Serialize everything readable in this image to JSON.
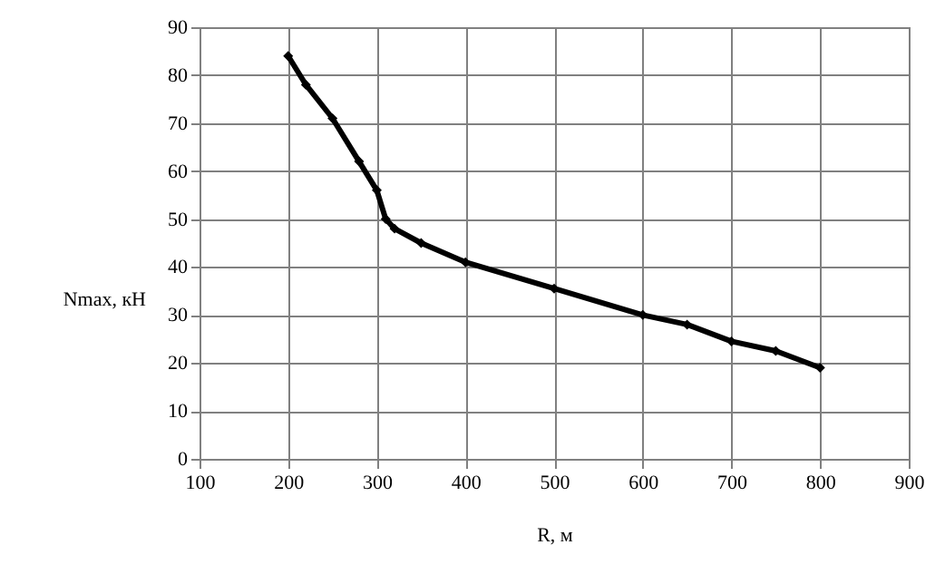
{
  "chart_data": {
    "type": "line",
    "xlabel": "R, м",
    "ylabel": "Nmax, кН",
    "x": [
      200,
      220,
      250,
      280,
      300,
      310,
      320,
      350,
      400,
      500,
      600,
      650,
      700,
      750,
      800
    ],
    "series": [
      {
        "color": "#000000",
        "values": [
          84,
          78,
          71,
          62,
          56,
          50,
          48,
          45,
          41,
          35.5,
          30,
          28,
          24.5,
          22.5,
          19
        ]
      }
    ],
    "xlim": [
      100,
      900
    ],
    "xticks": [
      100,
      200,
      300,
      400,
      500,
      600,
      700,
      800,
      900
    ],
    "ylim": [
      0,
      90
    ],
    "yticks": [
      0,
      10,
      20,
      30,
      40,
      50,
      60,
      70,
      80,
      90
    ],
    "grid": true,
    "marker": "diamond",
    "line_style": "solid"
  }
}
